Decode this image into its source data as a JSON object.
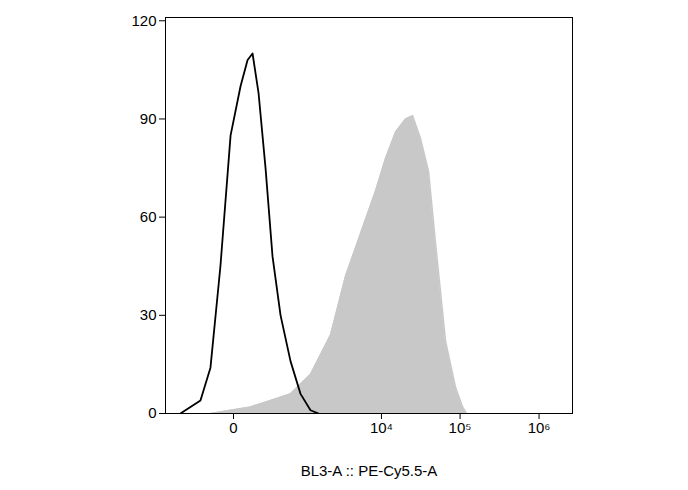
{
  "chart_data": {
    "type": "area",
    "x_label": "BL3-A :: PE-Cy5.5-A",
    "xlim": [
      -850,
      2650000
    ],
    "xticks": [
      0,
      {
        "value": 10000,
        "label": "10⁴"
      },
      {
        "value": 100000,
        "label": "10⁵"
      },
      {
        "value": 1000000,
        "label": "10⁶"
      }
    ],
    "ylim": [
      0,
      121
    ],
    "yticks": [
      0,
      30,
      60,
      90,
      120
    ],
    "grid": false,
    "series": [
      {
        "type": "area",
        "color": "#c8c8c8",
        "x": [
          -130,
          87,
          580,
          1147,
          2162,
          3427,
          5370,
          8390,
          11290,
          15150,
          20320,
          24960,
          31520,
          39830,
          48890,
          65550,
          87680,
          107600,
          120850
        ],
        "values": [
          0,
          2,
          6,
          12,
          24,
          42,
          55,
          68,
          78,
          86,
          90,
          91,
          84,
          74,
          52,
          22,
          8,
          2,
          0
        ]
      },
      {
        "type": "line",
        "color": "#000000",
        "x": [
          -502,
          -220,
          -130,
          -63,
          -12,
          31,
          69,
          101,
          146,
          210,
          288,
          400,
          580,
          823,
          1147,
          1484
        ],
        "values": [
          0,
          4,
          14,
          45,
          85,
          100,
          108,
          110,
          98,
          75,
          48,
          30,
          16,
          6,
          1,
          0
        ]
      }
    ]
  }
}
